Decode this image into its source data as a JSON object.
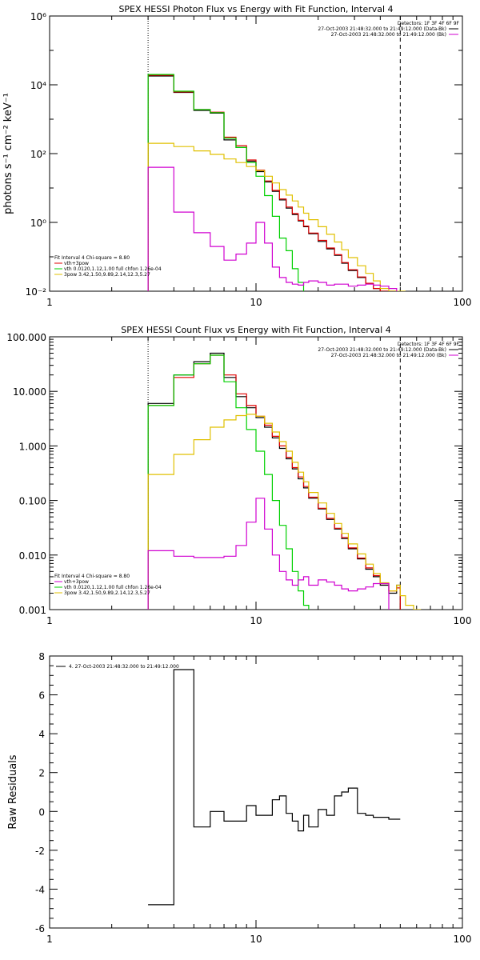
{
  "chart_data": [
    {
      "type": "line",
      "title": "SPEX HESSI Photon Flux vs Energy with Fit Function, Interval 4",
      "xlabel": "",
      "ylabel": "photons s⁻¹ cm⁻² keV⁻¹",
      "xscale": "log",
      "yscale": "log",
      "xlim": [
        1,
        100
      ],
      "ylim": [
        0.01,
        1000000
      ],
      "xticklabels": [
        "1",
        "10",
        "100"
      ],
      "yticklabels": [
        "10⁻²",
        "10⁰",
        "10²",
        "10⁴",
        "10⁶"
      ],
      "edges": [
        3,
        4,
        5,
        6,
        7,
        8,
        9,
        10,
        11,
        12,
        13,
        14,
        15,
        16,
        17,
        18,
        20,
        22,
        24,
        26,
        28,
        31,
        34,
        37,
        40,
        44,
        48,
        53
      ],
      "vlines": [
        {
          "x": 3,
          "style": "dotted"
        },
        {
          "x": 50,
          "style": "dashed"
        }
      ],
      "legend_title": "Detectors: 1F 3F 4F 6F 9F",
      "legend": [
        {
          "text": "27-Oct-2003 21:48:32.000 to 21:49:12.000 (Data-Bk)",
          "color": "#000000"
        },
        {
          "text": "27-Oct-2003 21:48:32.000 to 21:49:12.000 (Bk)",
          "color": "#d000d0"
        }
      ],
      "fit_info": [
        {
          "text": "Fit Interval 4   Chi-square = 8.80",
          "color": "#000000"
        },
        {
          "text": "vth+3pow",
          "color": "#e00000"
        },
        {
          "text": "vth 0.0120,1.12,1.00  full chfon 1.26e-04",
          "color": "#00d000"
        },
        {
          "text": "3pow 3.42,1.50,9.89,2.14,12.3,5.27",
          "color": "#e0c000"
        }
      ],
      "series": [
        {
          "color": "#000000",
          "values": [
            18000,
            6000,
            1800,
            1500,
            250,
            150,
            60,
            30,
            15,
            8,
            4.5,
            2.6,
            1.7,
            1.1,
            0.75,
            0.47,
            0.28,
            0.17,
            0.11,
            0.065,
            0.04,
            0.025,
            0.017,
            0.012,
            0.008,
            0.005,
            null
          ]
        },
        {
          "color": "#e00000",
          "values": [
            19000,
            6200,
            1900,
            1600,
            300,
            170,
            65,
            33,
            16,
            8.5,
            4.8,
            2.8,
            1.8,
            1.15,
            0.78,
            0.49,
            0.3,
            0.18,
            0.115,
            0.068,
            0.042,
            0.026,
            0.017,
            0.012,
            0.0085,
            0.0052,
            null
          ]
        },
        {
          "color": "#00d000",
          "values": [
            20000,
            6500,
            1900,
            1550,
            280,
            150,
            55,
            22,
            6,
            1.5,
            0.35,
            0.15,
            0.045,
            0.018,
            null,
            null,
            null,
            null,
            null,
            null,
            null,
            null,
            null,
            null,
            null,
            null,
            null
          ]
        },
        {
          "color": "#e0c000",
          "values": [
            200,
            160,
            120,
            95,
            70,
            55,
            42,
            32,
            22,
            14,
            9,
            6.2,
            4.2,
            2.8,
            1.85,
            1.2,
            0.75,
            0.45,
            0.27,
            0.16,
            0.095,
            0.055,
            0.033,
            0.02,
            0.012,
            0.0075,
            0.0045
          ]
        },
        {
          "color": "#d000d0",
          "values": [
            40,
            2,
            0.5,
            0.2,
            0.08,
            0.12,
            0.25,
            1,
            0.25,
            0.05,
            0.025,
            0.018,
            0.016,
            0.015,
            0.018,
            0.02,
            0.018,
            0.015,
            0.016,
            0.016,
            0.014,
            0.015,
            0.016,
            0.015,
            0.014,
            0.012,
            null
          ]
        }
      ]
    },
    {
      "type": "line",
      "title": "SPEX HESSI Count Flux vs Energy with Fit Function, Interval 4",
      "xlabel": "",
      "ylabel": "",
      "xscale": "log",
      "yscale": "log",
      "xlim": [
        1,
        100
      ],
      "ylim": [
        0.001,
        100
      ],
      "xticklabels": [
        "1",
        "10",
        "100"
      ],
      "yticklabels": [
        "0.001",
        "0.010",
        "0.100",
        "1.000",
        "10.000",
        "100.000"
      ],
      "edges": [
        3,
        4,
        5,
        6,
        7,
        8,
        9,
        10,
        11,
        12,
        13,
        14,
        15,
        16,
        17,
        18,
        20,
        22,
        24,
        26,
        28,
        31,
        34,
        37,
        40,
        44,
        48,
        50,
        53,
        58,
        63
      ],
      "vlines": [
        {
          "x": 3,
          "style": "dotted"
        },
        {
          "x": 50,
          "style": "dashed"
        }
      ],
      "legend_title": "Detectors: 1F 3F 4F 6F 9F",
      "legend": [
        {
          "text": "27-Oct-2003 21:48:32.000 to 21:49:12.000 (Data-Bk)",
          "color": "#000000"
        },
        {
          "text": "27-Oct-2003 21:48:32.000 to 21:49:12.000 (Bk)",
          "color": "#d000d0"
        }
      ],
      "fit_info": [
        {
          "text": "Fit Interval 4   Chi-square = 8.80",
          "color": "#000000"
        },
        {
          "text": "vth+3pow",
          "color": "#d000d0"
        },
        {
          "text": "vth 0.0120,1.12,1.00  full chfon 1.26e-04",
          "color": "#00d000"
        },
        {
          "text": "3pow 3.42,1.50,9.89,2.14,12.3,5.27",
          "color": "#e0c000"
        }
      ],
      "series": [
        {
          "color": "#000000",
          "values": [
            6,
            20,
            35,
            50,
            18,
            8,
            5,
            3.3,
            2.2,
            1.4,
            0.9,
            0.58,
            0.38,
            0.25,
            0.17,
            0.11,
            0.07,
            0.045,
            0.03,
            0.02,
            0.013,
            0.0085,
            0.0055,
            0.004,
            0.0028,
            0.002,
            0.0028,
            null,
            null,
            null
          ]
        },
        {
          "color": "#e00000",
          "values": [
            5.5,
            18,
            32,
            46,
            20,
            9,
            5.5,
            3.5,
            2.4,
            1.5,
            1,
            0.62,
            0.4,
            0.27,
            0.18,
            0.115,
            0.072,
            0.047,
            0.031,
            0.021,
            0.0135,
            0.0088,
            0.0058,
            0.0042,
            0.003,
            0.0022,
            0.0025,
            null,
            null,
            null
          ]
        },
        {
          "color": "#00d000",
          "values": [
            5.5,
            20,
            32,
            46,
            15,
            5,
            2,
            0.8,
            0.3,
            0.1,
            0.035,
            0.013,
            0.005,
            0.0022,
            0.0012,
            null,
            null,
            null,
            null,
            null,
            null,
            null,
            null,
            null,
            null,
            null,
            null,
            null,
            null,
            null
          ]
        },
        {
          "color": "#e0c000",
          "values": [
            0.3,
            0.7,
            1.3,
            2.2,
            3,
            3.6,
            3.8,
            3.5,
            2.6,
            1.8,
            1.2,
            0.8,
            0.5,
            0.33,
            0.22,
            0.14,
            0.09,
            0.058,
            0.038,
            0.025,
            0.016,
            0.0105,
            0.0068,
            0.0046,
            0.0031,
            0.0022,
            0.0028,
            0.0018,
            0.0012,
            0.001
          ]
        },
        {
          "color": "#d000d0",
          "values": [
            0.012,
            0.0095,
            0.009,
            0.009,
            0.0095,
            0.015,
            0.04,
            0.11,
            0.03,
            0.01,
            0.005,
            0.0035,
            0.0028,
            0.0035,
            0.004,
            0.0028,
            0.0035,
            0.0032,
            0.0028,
            0.0024,
            0.0022,
            0.0024,
            0.0026,
            0.003,
            0.003,
            null,
            null,
            null,
            null,
            null
          ]
        }
      ]
    },
    {
      "type": "line",
      "title": "",
      "xlabel": "",
      "ylabel": "Raw Residuals",
      "xscale": "log",
      "yscale": "linear",
      "xlim": [
        1,
        100
      ],
      "ylim": [
        -6,
        8
      ],
      "xticklabels": [
        "1",
        "10",
        "100"
      ],
      "yticks": [
        -6,
        -4,
        -2,
        0,
        2,
        4,
        6,
        8
      ],
      "yticklabels": [
        "-6",
        "-4",
        "-2",
        "0",
        "2",
        "4",
        "6",
        "8"
      ],
      "edges": [
        3,
        4,
        5,
        6,
        7,
        8,
        9,
        10,
        11,
        12,
        13,
        14,
        15,
        16,
        17,
        18,
        20,
        22,
        24,
        26,
        28,
        31,
        34,
        37,
        40,
        44,
        48,
        50
      ],
      "vlines": [],
      "legend": [
        {
          "text": "4. 27-Oct-2003 21:48:32.000 to 21:49:12.000",
          "color": "#000000"
        }
      ],
      "fit_info": [],
      "series": [
        {
          "color": "#000000",
          "values": [
            -4.8,
            7.3,
            -0.8,
            0,
            -0.5,
            -0.5,
            0.3,
            -0.2,
            -0.2,
            0.6,
            0.8,
            -0.1,
            -0.5,
            -1,
            -0.2,
            -0.8,
            0.1,
            -0.2,
            0.8,
            1,
            1.2,
            -0.1,
            -0.2,
            -0.3,
            -0.3,
            -0.4,
            -0.4
          ]
        }
      ]
    }
  ]
}
